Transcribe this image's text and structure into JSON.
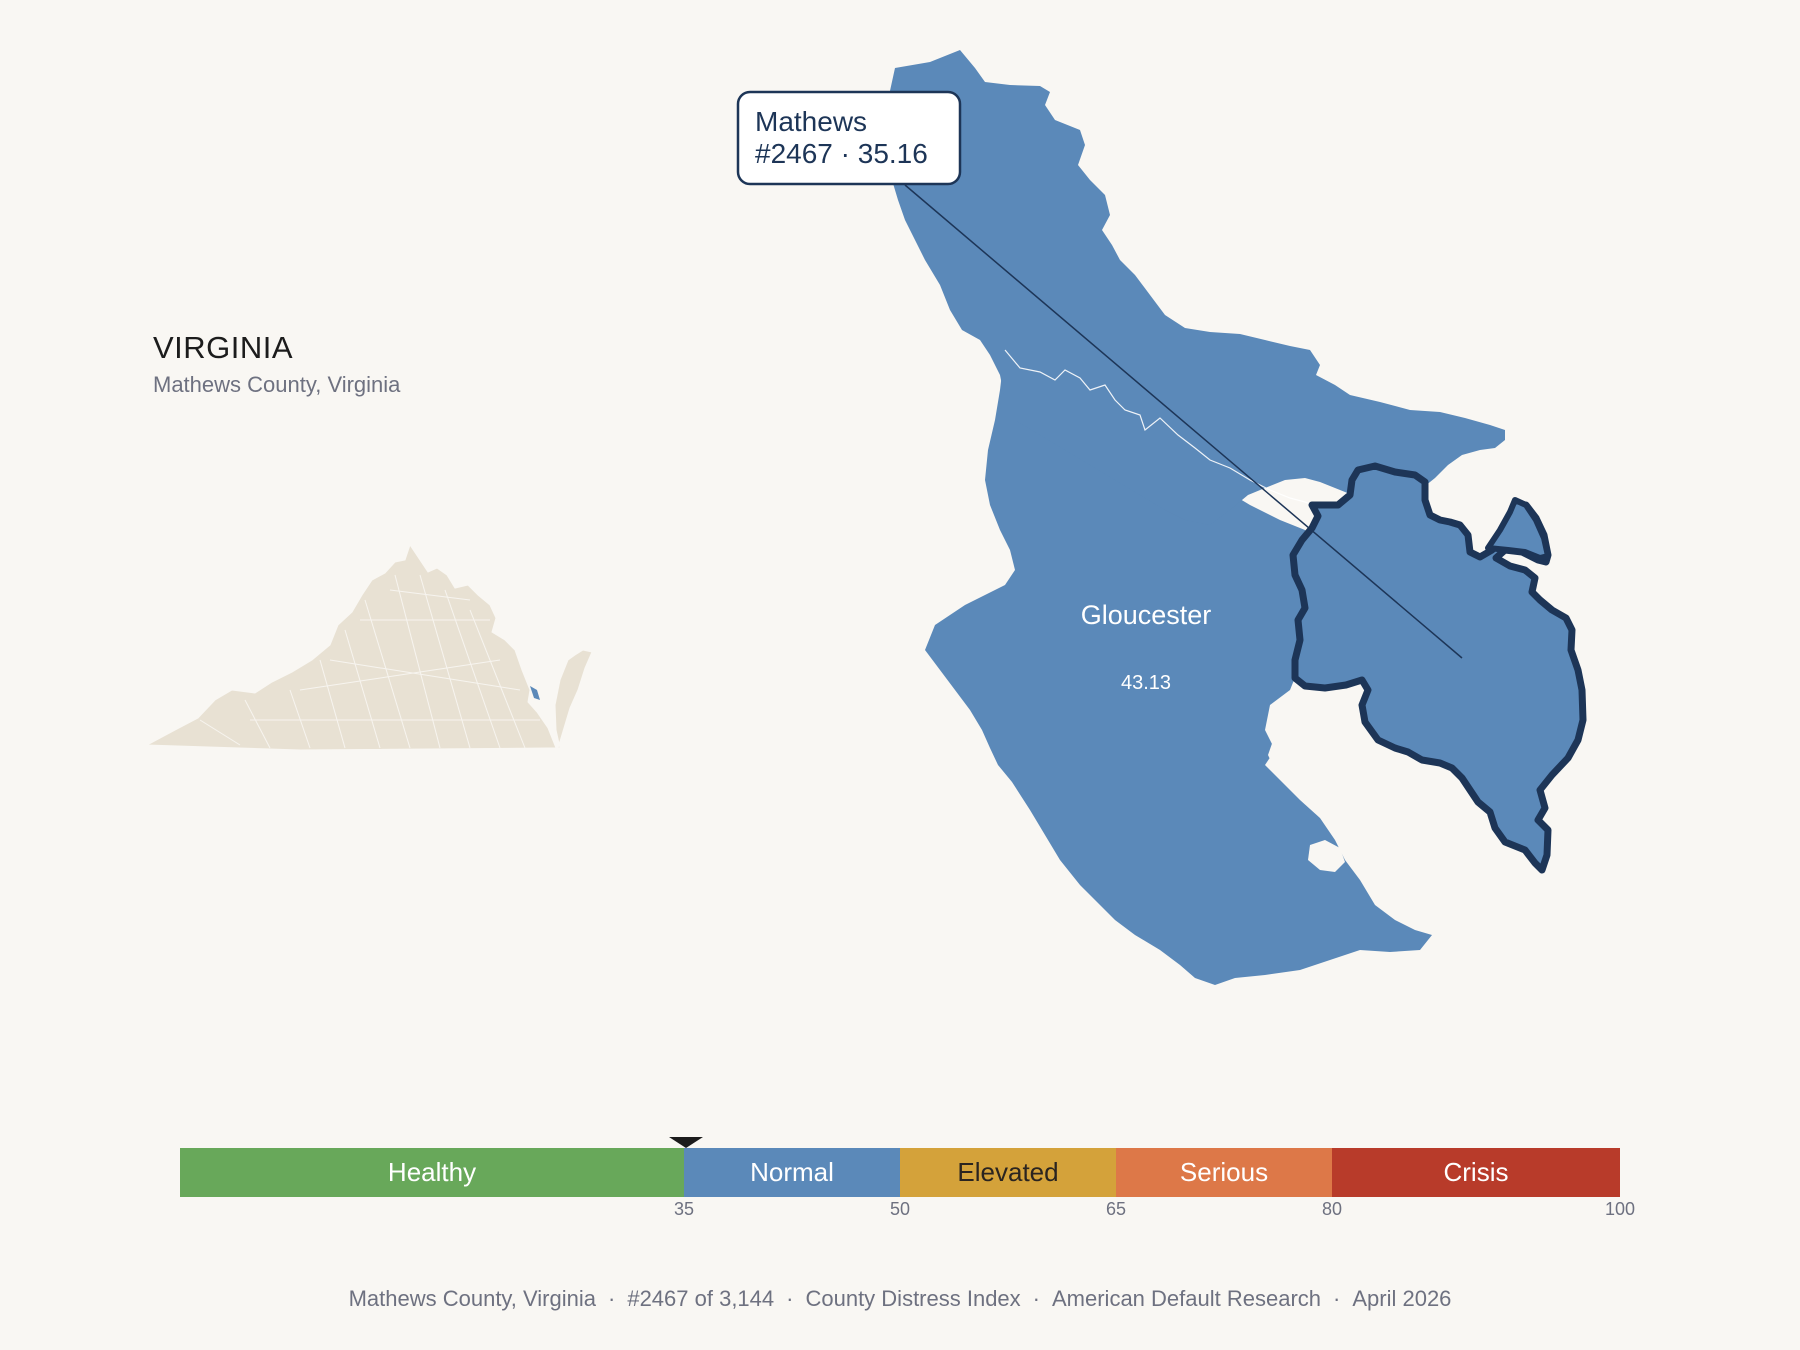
{
  "header": {
    "state_title": "VIRGINIA",
    "county_subtitle": "Mathews County, Virginia"
  },
  "map": {
    "highlight_color": "#5b89b9",
    "outline_color": "#1d3557",
    "inset_fill": "#e8e1d3",
    "callout": {
      "name": "Mathews",
      "detail": "#2467 · 35.16"
    },
    "neighbor": {
      "name": "Gloucester",
      "value": "43.13"
    }
  },
  "scale": {
    "segments": [
      {
        "label": "Healthy",
        "from": 0,
        "to": 35,
        "color": "#68a85a"
      },
      {
        "label": "Normal",
        "from": 35,
        "to": 50,
        "color": "#5b89b9"
      },
      {
        "label": "Elevated",
        "from": 50,
        "to": 65,
        "color": "#d4a23a"
      },
      {
        "label": "Serious",
        "from": 65,
        "to": 80,
        "color": "#dd7848"
      },
      {
        "label": "Crisis",
        "from": 80,
        "to": 100,
        "color": "#b83b2a"
      }
    ],
    "ticks": [
      "35",
      "50",
      "65",
      "80",
      "100"
    ],
    "marker_value": 35.16
  },
  "footer": {
    "county": "Mathews County, Virginia",
    "rank": "#2467 of 3,144",
    "index": "County Distress Index",
    "source": "American Default Research",
    "date": "April 2026"
  }
}
